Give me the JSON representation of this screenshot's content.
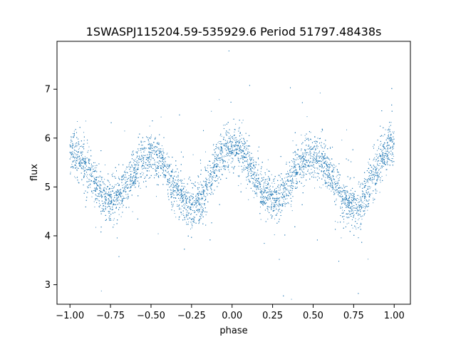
{
  "chart_data": {
    "type": "scatter",
    "title": "1SWASPJ115204.59-535929.6 Period 51797.48438s",
    "xlabel": "phase",
    "ylabel": "flux",
    "xlim": [
      -1.08,
      1.1
    ],
    "ylim": [
      2.6,
      7.98
    ],
    "xticks": [
      -1.0,
      -0.75,
      -0.5,
      -0.25,
      0.0,
      0.25,
      0.5,
      0.75,
      1.0
    ],
    "xtick_labels": [
      "−1.00",
      "−0.75",
      "−0.50",
      "−0.25",
      "0.00",
      "0.25",
      "0.50",
      "0.75",
      "1.00"
    ],
    "yticks": [
      3,
      4,
      5,
      6,
      7
    ],
    "ytick_labels": [
      "3",
      "4",
      "5",
      "6",
      "7"
    ],
    "grid": false,
    "marker_color": "#1f77b4",
    "series": [
      {
        "x_range": [
          -1.0,
          1.0
        ],
        "light_curve_shape": [
          {
            "phase": -1.0,
            "flux": 5.7
          },
          {
            "phase": -0.75,
            "flux": 4.75
          },
          {
            "phase": -0.5,
            "flux": 5.65
          },
          {
            "phase": -0.25,
            "flux": 4.6
          },
          {
            "phase": 0.0,
            "flux": 5.85
          },
          {
            "phase": 0.25,
            "flux": 4.75
          },
          {
            "phase": 0.5,
            "flux": 5.65
          },
          {
            "phase": 0.75,
            "flux": 4.6
          },
          {
            "phase": 1.0,
            "flux": 5.85
          }
        ],
        "point_count": 9000,
        "flux_spread": 0.22
      }
    ]
  }
}
